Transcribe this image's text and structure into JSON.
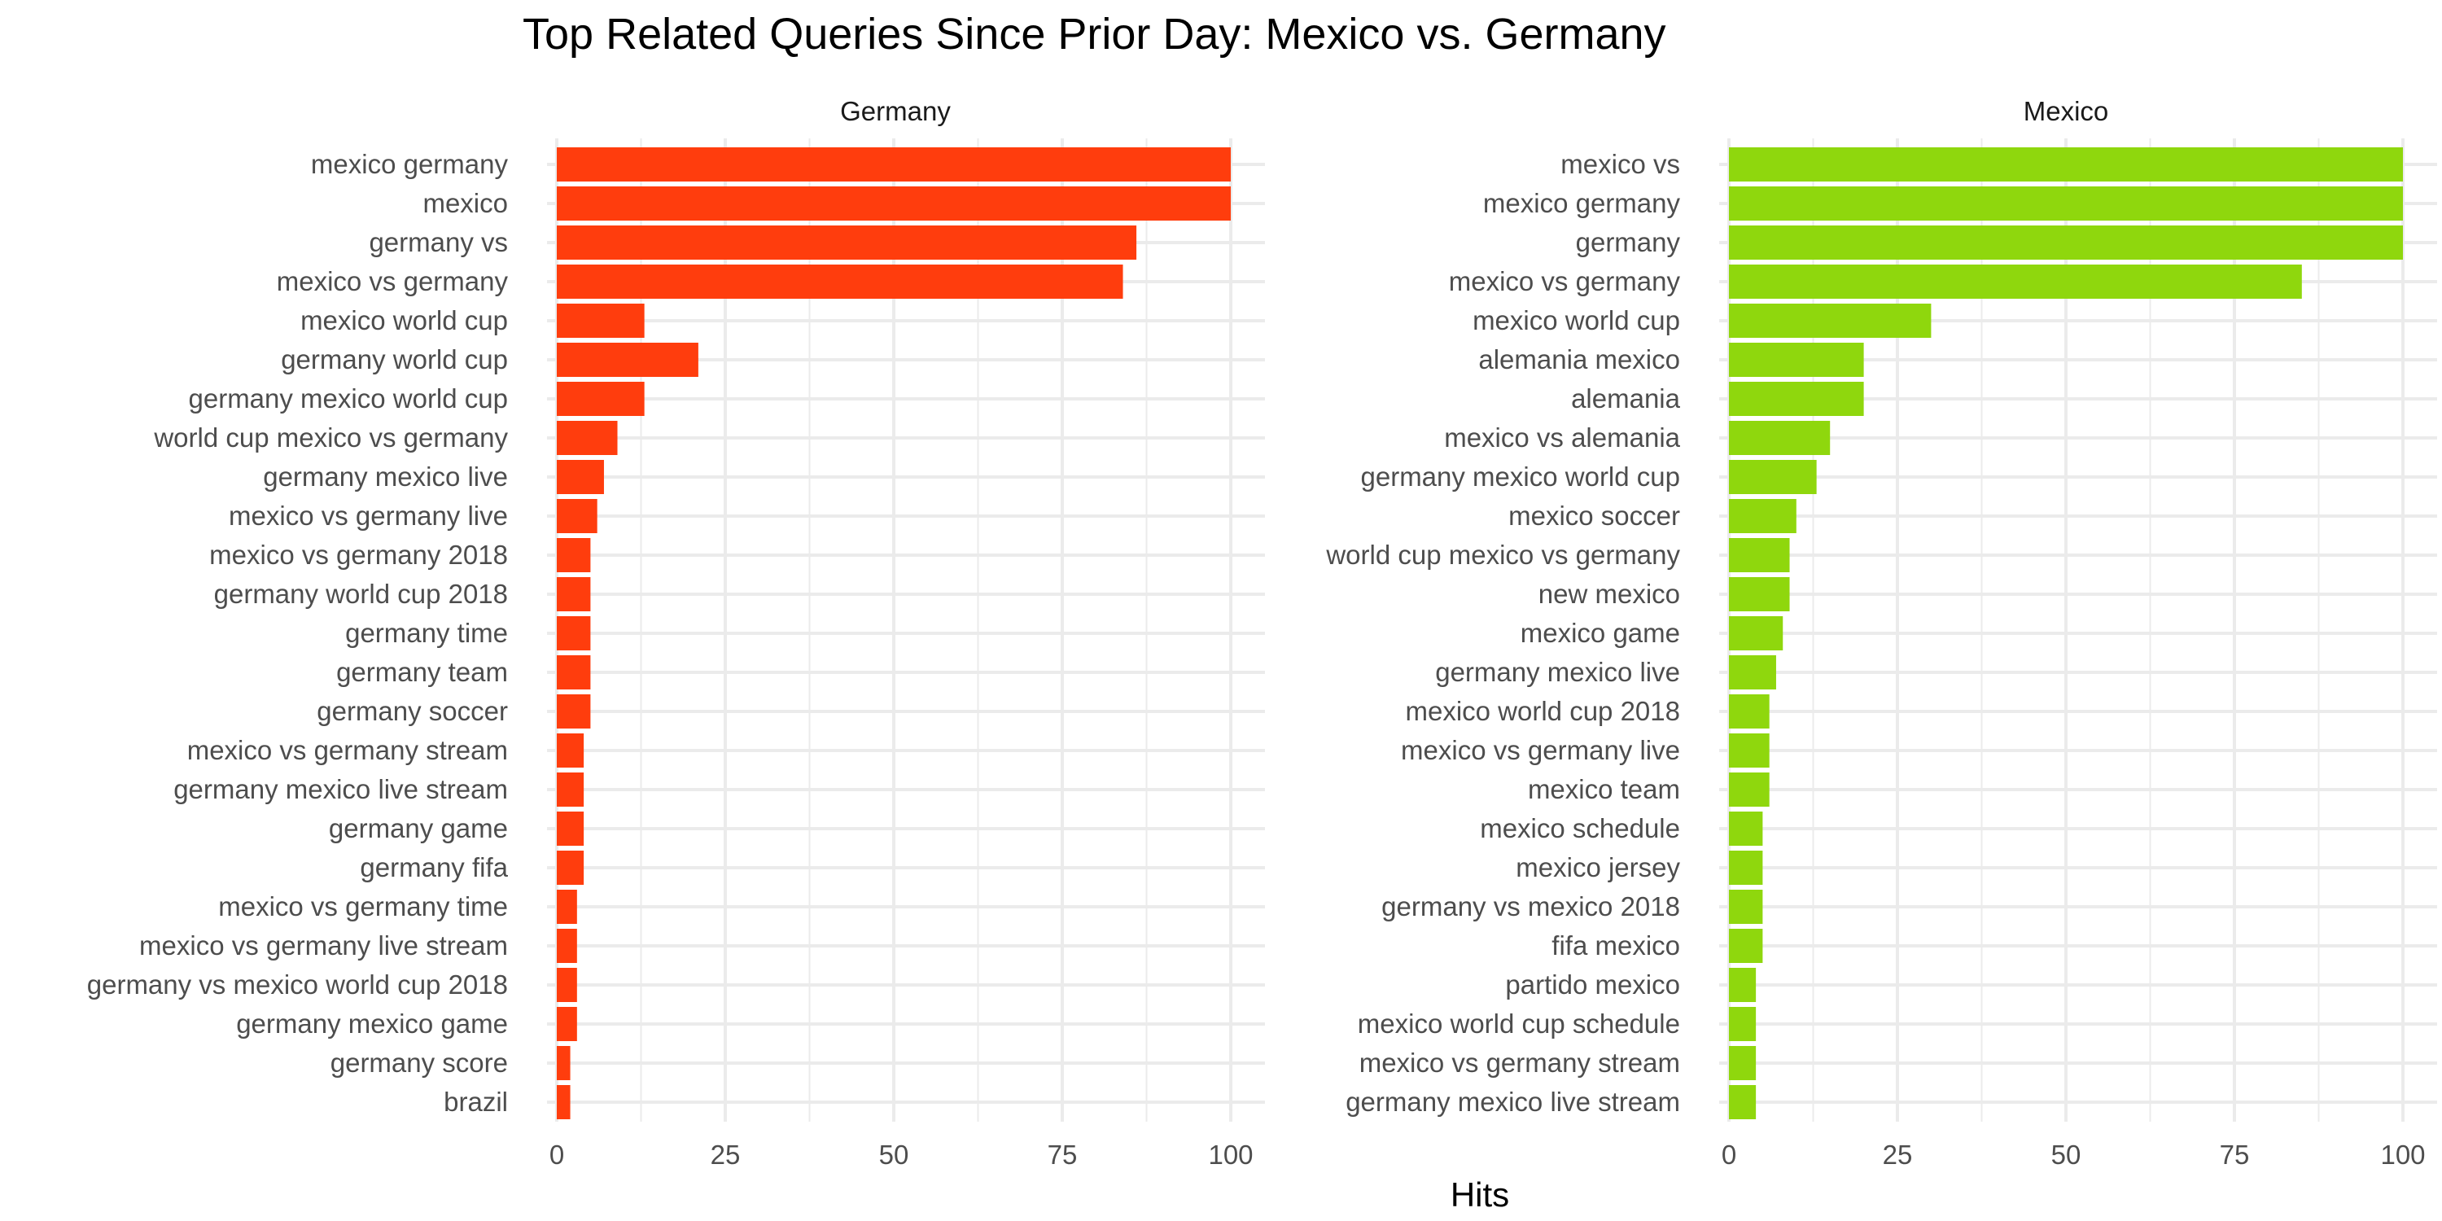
{
  "chart_data": {
    "type": "bar",
    "title": "Top Related Queries Since Prior Day: Mexico vs. Germany",
    "xlabel": "Hits",
    "ylabel": "",
    "orientation": "horizontal",
    "xlim": [
      0,
      100
    ],
    "xticks": [
      0,
      25,
      50,
      75,
      100
    ],
    "grid": true,
    "legend": "none",
    "panels": [
      {
        "name": "Germany",
        "color": "#FF3D0D",
        "categories": [
          "mexico germany",
          "mexico",
          "germany vs",
          "mexico vs germany",
          "mexico world cup",
          "germany world cup",
          "germany mexico world cup",
          "world cup mexico vs germany",
          "germany mexico live",
          "mexico vs germany live",
          "mexico vs germany 2018",
          "germany world cup 2018",
          "germany time",
          "germany team",
          "germany soccer",
          "mexico vs germany stream",
          "germany mexico live stream",
          "germany game",
          "germany fifa",
          "mexico vs germany time",
          "mexico vs germany live stream",
          "germany vs mexico world cup 2018",
          "germany mexico game",
          "germany score",
          "brazil"
        ],
        "values": [
          100,
          100,
          86,
          84,
          13,
          21,
          13,
          9,
          7,
          6,
          5,
          5,
          5,
          5,
          5,
          4,
          4,
          4,
          4,
          3,
          3,
          3,
          3,
          2,
          2
        ]
      },
      {
        "name": "Mexico",
        "color": "#8FD70D",
        "categories": [
          "mexico vs",
          "mexico germany",
          "germany",
          "mexico vs germany",
          "mexico world cup",
          "alemania mexico",
          "alemania",
          "mexico vs alemania",
          "germany mexico world cup",
          "mexico soccer",
          "world cup mexico vs germany",
          "new mexico",
          "mexico game",
          "germany mexico live",
          "mexico world cup 2018",
          "mexico vs germany live",
          "mexico team",
          "mexico schedule",
          "mexico jersey",
          "germany vs mexico 2018",
          "fifa mexico",
          "partido mexico",
          "mexico world cup schedule",
          "mexico vs germany stream",
          "germany mexico live stream"
        ],
        "values": [
          100,
          100,
          100,
          85,
          30,
          20,
          20,
          15,
          13,
          10,
          9,
          9,
          8,
          7,
          6,
          6,
          6,
          5,
          5,
          5,
          5,
          4,
          4,
          4,
          4
        ]
      }
    ]
  }
}
